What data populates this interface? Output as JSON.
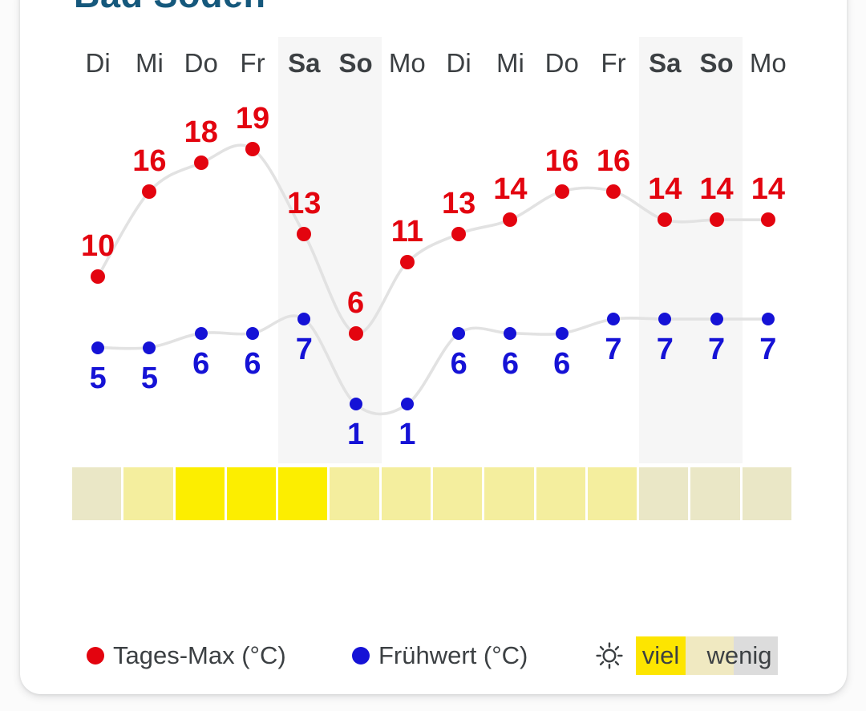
{
  "page": {
    "title": "Bad Soden"
  },
  "chart_data": {
    "type": "line",
    "title": "Bad Soden",
    "categories": [
      "Di",
      "Mi",
      "Do",
      "Fr",
      "Sa",
      "So",
      "Mo",
      "Di",
      "Mi",
      "Do",
      "Fr",
      "Sa",
      "So",
      "Mo"
    ],
    "weekend_indices": [
      4,
      5,
      11,
      12
    ],
    "series": [
      {
        "name": "Tages-Max (°C)",
        "color": "#e3040f",
        "values": [
          10,
          16,
          18,
          19,
          13,
          6,
          11,
          13,
          14,
          16,
          16,
          14,
          14,
          14
        ]
      },
      {
        "name": "Frühwert (°C)",
        "color": "#1512d6",
        "values": [
          5,
          5,
          6,
          6,
          7,
          1,
          1,
          6,
          6,
          6,
          7,
          7,
          7,
          7
        ]
      }
    ],
    "sun_intensity": [
      "low",
      "medium",
      "high",
      "high",
      "high",
      "medium",
      "medium",
      "medium",
      "medium",
      "medium",
      "medium",
      "low",
      "low",
      "low"
    ],
    "ylim": [
      0,
      21
    ],
    "grid": false,
    "legend_position": "bottom",
    "legend": {
      "max_label": "Tages-Max (°C)",
      "min_label": "Frühwert (°C)",
      "sun_much": "viel",
      "sun_little": "wenig"
    }
  },
  "colors": {
    "title": "#15587c",
    "day_text": "#3c4043",
    "line": "#e2e2e2",
    "weekend_band": "#f6f6f6",
    "max_series": "#e3040f",
    "min_series": "#1512d6",
    "sun_low": "#eae7c6",
    "sun_medium": "#f4ee9e",
    "sun_high": "#fcee00",
    "legend_viel_bg": "#fde500",
    "legend_mid_bg": "#f0e9c1",
    "legend_wenig_bg": "#dcdcdc",
    "legend_text": "#3c4043"
  }
}
